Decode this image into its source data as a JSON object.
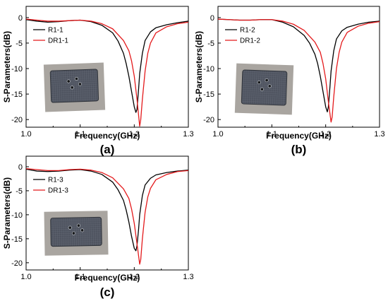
{
  "chart_data": [
    {
      "type": "line",
      "panel_label": "(a)",
      "xlabel": "Frequency(GHz)",
      "ylabel": "S-Parameters(dB)",
      "xlim": [
        1.0,
        1.3
      ],
      "ylim": [
        -21.5,
        2.2
      ],
      "x_ticks": [
        "1.0",
        "1.1",
        "1.2",
        "1.3"
      ],
      "y_ticks": [
        "0",
        "-5",
        "-10",
        "-15",
        "-20"
      ],
      "legend_position": "top-left",
      "inset_photo": "sample-photo",
      "series": [
        {
          "name": "R1-1",
          "color": "#000000",
          "x": [
            1.0,
            1.02,
            1.04,
            1.06,
            1.08,
            1.1,
            1.12,
            1.14,
            1.16,
            1.17,
            1.18,
            1.185,
            1.19,
            1.195,
            1.2,
            1.203,
            1.205,
            1.208,
            1.21,
            1.215,
            1.22,
            1.23,
            1.24,
            1.26,
            1.28,
            1.3
          ],
          "y": [
            -0.4,
            -0.7,
            -0.9,
            -0.8,
            -0.6,
            -0.5,
            -0.8,
            -1.5,
            -3.0,
            -4.6,
            -7.0,
            -9.0,
            -11.5,
            -14.5,
            -17.5,
            -18.6,
            -18.0,
            -14.0,
            -11.0,
            -7.0,
            -4.5,
            -2.8,
            -2.0,
            -1.4,
            -1.0,
            -0.7
          ]
        },
        {
          "name": "DR1-1",
          "color": "#e41a1c",
          "x": [
            1.0,
            1.02,
            1.04,
            1.06,
            1.08,
            1.1,
            1.12,
            1.14,
            1.16,
            1.18,
            1.19,
            1.195,
            1.2,
            1.205,
            1.21,
            1.212,
            1.215,
            1.22,
            1.225,
            1.23,
            1.24,
            1.26,
            1.28,
            1.3
          ],
          "y": [
            -0.3,
            -0.5,
            -0.7,
            -0.7,
            -0.6,
            -0.5,
            -0.7,
            -1.2,
            -2.2,
            -4.5,
            -6.5,
            -8.5,
            -11.5,
            -16.0,
            -21.3,
            -20.0,
            -16.0,
            -10.5,
            -7.0,
            -5.0,
            -3.0,
            -1.8,
            -1.2,
            -0.9
          ]
        }
      ]
    },
    {
      "type": "line",
      "panel_label": "(b)",
      "xlabel": "Frequency(GHz)",
      "ylabel": "S-Parameters(dB)",
      "xlim": [
        1.0,
        1.3
      ],
      "ylim": [
        -21.5,
        2.2
      ],
      "x_ticks": [
        "1.0",
        "1.1",
        "1.2",
        "1.3"
      ],
      "y_ticks": [
        "0",
        "-5",
        "-10",
        "-15",
        "-20"
      ],
      "legend_position": "top-left",
      "inset_photo": "sample-photo",
      "series": [
        {
          "name": "R1-2",
          "color": "#000000",
          "x": [
            1.0,
            1.02,
            1.04,
            1.06,
            1.08,
            1.1,
            1.12,
            1.14,
            1.16,
            1.17,
            1.18,
            1.185,
            1.19,
            1.195,
            1.2,
            1.203,
            1.205,
            1.208,
            1.21,
            1.215,
            1.22,
            1.23,
            1.24,
            1.26,
            1.28,
            1.3
          ],
          "y": [
            -0.3,
            -0.4,
            -0.5,
            -0.5,
            -0.4,
            -0.4,
            -0.9,
            -1.8,
            -3.5,
            -5.0,
            -7.2,
            -9.0,
            -11.5,
            -14.5,
            -17.5,
            -18.5,
            -17.5,
            -13.5,
            -10.5,
            -6.5,
            -4.2,
            -2.6,
            -1.9,
            -1.3,
            -0.9,
            -0.7
          ]
        },
        {
          "name": "DR1-2",
          "color": "#e41a1c",
          "x": [
            1.0,
            1.02,
            1.04,
            1.06,
            1.08,
            1.1,
            1.12,
            1.14,
            1.16,
            1.18,
            1.19,
            1.195,
            1.2,
            1.205,
            1.21,
            1.212,
            1.215,
            1.22,
            1.225,
            1.23,
            1.24,
            1.26,
            1.28,
            1.3
          ],
          "y": [
            -0.3,
            -0.4,
            -0.5,
            -0.5,
            -0.4,
            -0.4,
            -0.7,
            -1.3,
            -2.5,
            -4.8,
            -6.8,
            -9.0,
            -12.0,
            -16.5,
            -20.5,
            -19.5,
            -15.5,
            -10.0,
            -6.8,
            -4.8,
            -2.9,
            -1.7,
            -1.1,
            -0.8
          ]
        }
      ]
    },
    {
      "type": "line",
      "panel_label": "(c)",
      "xlabel": "Frequency(GHz)",
      "ylabel": "S-Parameters(dB)",
      "xlim": [
        1.0,
        1.3
      ],
      "ylim": [
        -21.5,
        2.2
      ],
      "x_ticks": [
        "1.0",
        "1.1",
        "1.2",
        "1.3"
      ],
      "y_ticks": [
        "0",
        "-5",
        "-10",
        "-15",
        "-20"
      ],
      "legend_position": "top-left",
      "inset_photo": "sample-photo",
      "series": [
        {
          "name": "R1-3",
          "color": "#000000",
          "x": [
            1.0,
            1.02,
            1.04,
            1.06,
            1.08,
            1.1,
            1.12,
            1.14,
            1.16,
            1.17,
            1.18,
            1.185,
            1.19,
            1.195,
            1.2,
            1.203,
            1.205,
            1.208,
            1.21,
            1.215,
            1.22,
            1.23,
            1.24,
            1.26,
            1.28,
            1.3
          ],
          "y": [
            -0.5,
            -0.9,
            -1.0,
            -0.9,
            -0.7,
            -0.6,
            -0.9,
            -1.6,
            -3.2,
            -4.8,
            -7.0,
            -9.0,
            -11.5,
            -14.5,
            -17.0,
            -17.5,
            -16.5,
            -13.0,
            -10.0,
            -6.0,
            -3.8,
            -2.4,
            -1.7,
            -1.2,
            -0.9,
            -0.7
          ]
        },
        {
          "name": "DR1-3",
          "color": "#e41a1c",
          "x": [
            1.0,
            1.02,
            1.04,
            1.06,
            1.08,
            1.1,
            1.12,
            1.14,
            1.16,
            1.18,
            1.19,
            1.195,
            1.2,
            1.205,
            1.21,
            1.212,
            1.215,
            1.22,
            1.225,
            1.23,
            1.24,
            1.26,
            1.28,
            1.3
          ],
          "y": [
            -0.4,
            -0.6,
            -0.8,
            -0.8,
            -0.6,
            -0.5,
            -0.7,
            -1.2,
            -2.3,
            -4.6,
            -6.6,
            -8.8,
            -11.8,
            -16.0,
            -20.3,
            -19.3,
            -15.0,
            -9.5,
            -6.3,
            -4.5,
            -2.7,
            -1.6,
            -1.0,
            -0.8
          ]
        }
      ]
    }
  ]
}
